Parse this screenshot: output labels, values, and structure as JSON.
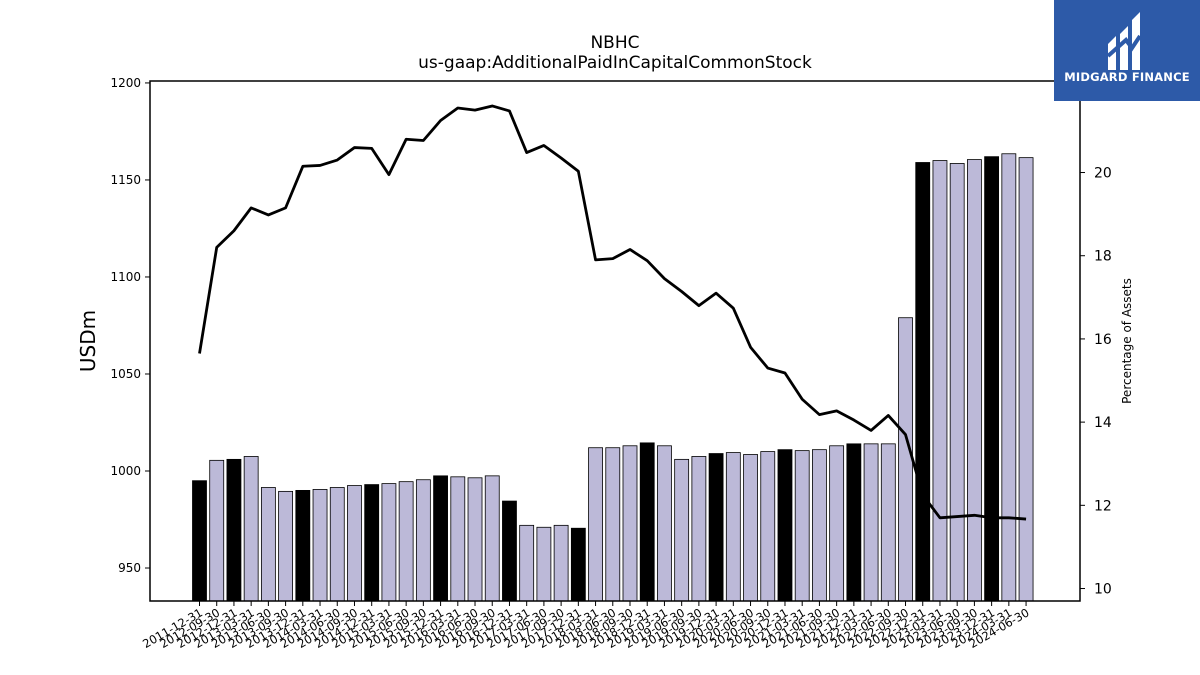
{
  "chart_data": {
    "type": "bar",
    "title": "NBHC",
    "subtitle": "us-gaap:AdditionalPaidInCapitalCommonStock",
    "ylabel": "USDm",
    "y2label": "Percentage of Assets",
    "ylim": [
      933,
      1201
    ],
    "y2lim": [
      9.7,
      22.2
    ],
    "yticks": [
      950,
      1000,
      1050,
      1100,
      1150,
      1200
    ],
    "y2ticks": [
      10,
      12,
      14,
      16,
      18,
      20
    ],
    "categories": [
      "2011-12-31",
      "2012-09-30",
      "2012-12-31",
      "2013-03-31",
      "2013-06-30",
      "2013-09-30",
      "2013-12-31",
      "2014-03-31",
      "2014-06-30",
      "2014-09-30",
      "2014-12-31",
      "2015-03-31",
      "2015-06-30",
      "2015-09-30",
      "2015-12-31",
      "2016-03-31",
      "2016-06-30",
      "2016-09-30",
      "2016-12-31",
      "2017-03-31",
      "2017-06-30",
      "2017-09-30",
      "2017-12-31",
      "2018-03-31",
      "2018-06-30",
      "2018-09-30",
      "2018-12-31",
      "2019-03-31",
      "2019-06-30",
      "2019-09-30",
      "2019-12-31",
      "2020-03-31",
      "2020-06-30",
      "2020-09-30",
      "2020-12-31",
      "2021-03-31",
      "2021-06-30",
      "2021-09-30",
      "2021-12-31",
      "2022-03-31",
      "2022-06-30",
      "2022-09-30",
      "2022-12-31",
      "2023-03-31",
      "2023-06-30",
      "2023-09-30",
      "2023-12-31",
      "2024-03-31",
      "2024-06-30"
    ],
    "series": [
      {
        "type": "bar",
        "axis": "left",
        "values": [
          995.0,
          1005.5,
          1006.0,
          1007.5,
          991.5,
          989.5,
          990.0,
          990.5,
          991.5,
          992.5,
          993.0,
          993.5,
          994.5,
          995.5,
          997.5,
          997.0,
          996.5,
          997.5,
          984.5,
          972.0,
          971.0,
          972.0,
          970.5,
          1012.0,
          1012.0,
          1013.0,
          1014.5,
          1013.0,
          1006.0,
          1007.5,
          1009.0,
          1009.5,
          1008.5,
          1010.0,
          1011.0,
          1010.5,
          1011.0,
          1013.0,
          1014.0,
          1014.0,
          1014.0,
          1079.0,
          1159.0,
          1160.0,
          1158.5,
          1160.5,
          1162.0,
          1163.5,
          1161.5
        ],
        "highlight": [
          true,
          false,
          true,
          false,
          false,
          false,
          true,
          false,
          false,
          false,
          true,
          false,
          false,
          false,
          true,
          false,
          false,
          false,
          true,
          false,
          false,
          false,
          true,
          false,
          false,
          false,
          true,
          false,
          false,
          false,
          true,
          false,
          false,
          false,
          true,
          false,
          false,
          false,
          true,
          false,
          false,
          false,
          true,
          false,
          false,
          false,
          true,
          false,
          false
        ],
        "colors": {
          "highlight": "#000000",
          "normal": "#bcb9d8",
          "edge": "#000000"
        }
      },
      {
        "type": "line",
        "axis": "right",
        "color": "#000000",
        "values": [
          15.65,
          18.2,
          18.6,
          19.15,
          18.98,
          19.15,
          20.15,
          20.17,
          20.3,
          20.6,
          20.58,
          19.95,
          20.8,
          20.77,
          21.25,
          21.55,
          21.5,
          21.6,
          21.48,
          20.48,
          20.65,
          20.35,
          20.03,
          17.9,
          17.93,
          18.15,
          17.88,
          17.45,
          17.14,
          16.8,
          17.1,
          16.74,
          15.8,
          15.3,
          15.18,
          14.55,
          14.18,
          14.27,
          14.05,
          13.8,
          14.16,
          13.7,
          12.25,
          11.7,
          11.73,
          11.76,
          11.7,
          11.7,
          11.67
        ]
      }
    ],
    "grid": false,
    "legend": "none"
  },
  "logo": {
    "text": "MIDGARD FINANCE",
    "icon": "midgard-logo-icon",
    "background": "#2d5aa8"
  }
}
